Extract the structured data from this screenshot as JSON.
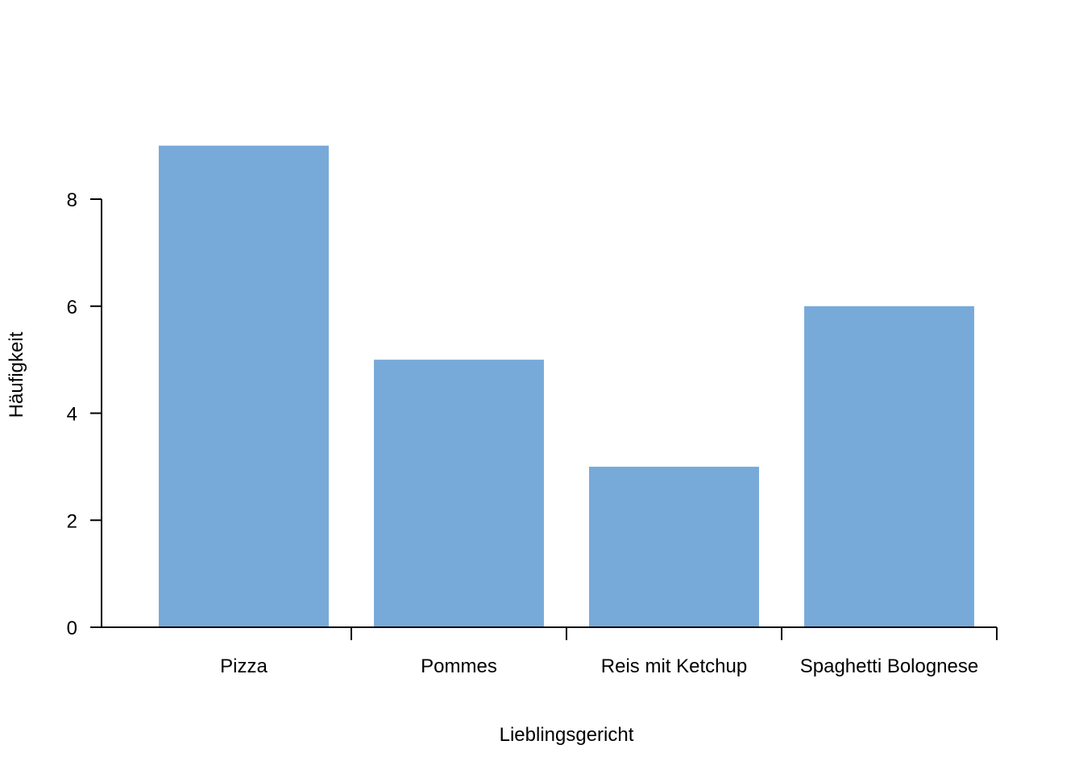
{
  "chart_data": {
    "type": "bar",
    "title": "",
    "xlabel": "Lieblingsgericht",
    "ylabel": "Häufigkeit",
    "categories": [
      "Pizza",
      "Pommes",
      "Reis mit Ketchup",
      "Spaghetti Bolognese"
    ],
    "values": [
      9,
      5,
      3,
      6
    ],
    "ylim": [
      0,
      9
    ],
    "yticks": [
      "0",
      "2",
      "4",
      "6",
      "8"
    ],
    "bar_color": "#77aad9",
    "grid": false,
    "legend": "none"
  }
}
